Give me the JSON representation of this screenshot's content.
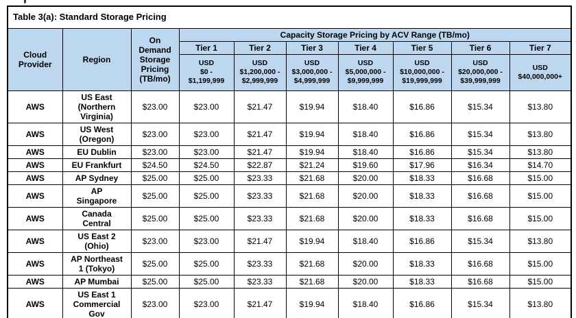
{
  "title": "Table 3(a): Standard Storage Pricing",
  "header": {
    "provider": "Cloud\nProvider",
    "region": "Region",
    "on_demand": "On\nDemand\nStorage\nPricing\n(TB/mo)",
    "capacity_group": "Capacity Storage Pricing by ACV Range (TB/mo)",
    "tiers": [
      {
        "name": "Tier 1",
        "range": "USD\n$0 -\n$1,199,999"
      },
      {
        "name": "Tier 2",
        "range": "USD\n$1,200,000 -\n$2,999,999"
      },
      {
        "name": "Tier 3",
        "range": "USD\n$3,000,000 -\n$4,999,999"
      },
      {
        "name": "Tier 4",
        "range": "USD\n$5,000,000 -\n$9,999,999"
      },
      {
        "name": "Tier 5",
        "range": "USD\n$10,000,000 -\n$19,999,999"
      },
      {
        "name": "Tier 6",
        "range": "USD\n$20,000,000 -\n$39,999,999"
      },
      {
        "name": "Tier 7",
        "range": "USD\n$40,000,000+"
      }
    ]
  },
  "rows": [
    {
      "provider": "AWS",
      "region": "US East\n(Northern\nVirginia)",
      "on_demand": "$23.00",
      "tiers": [
        "$23.00",
        "$21.47",
        "$19.94",
        "$18.40",
        "$16.86",
        "$15.34",
        "$13.80"
      ]
    },
    {
      "provider": "AWS",
      "region": "US West\n(Oregon)",
      "on_demand": "$23.00",
      "tiers": [
        "$23.00",
        "$21.47",
        "$19.94",
        "$18.40",
        "$16.86",
        "$15.34",
        "$13.80"
      ]
    },
    {
      "provider": "AWS",
      "region": "EU Dublin",
      "on_demand": "$23.00",
      "tiers": [
        "$23.00",
        "$21.47",
        "$19.94",
        "$18.40",
        "$16.86",
        "$15.34",
        "$13.80"
      ]
    },
    {
      "provider": "AWS",
      "region": "EU Frankfurt",
      "on_demand": "$24.50",
      "tiers": [
        "$24.50",
        "$22.87",
        "$21.24",
        "$19.60",
        "$17.96",
        "$16.34",
        "$14.70"
      ]
    },
    {
      "provider": "AWS",
      "region": "AP Sydney",
      "on_demand": "$25.00",
      "tiers": [
        "$25.00",
        "$23.33",
        "$21.68",
        "$20.00",
        "$18.33",
        "$16.68",
        "$15.00"
      ]
    },
    {
      "provider": "AWS",
      "region": "AP\nSingapore",
      "on_demand": "$25.00",
      "tiers": [
        "$25.00",
        "$23.33",
        "$21.68",
        "$20.00",
        "$18.33",
        "$16.68",
        "$15.00"
      ]
    },
    {
      "provider": "AWS",
      "region": "Canada\nCentral",
      "on_demand": "$25.00",
      "tiers": [
        "$25.00",
        "$23.33",
        "$21.68",
        "$20.00",
        "$18.33",
        "$16.68",
        "$15.00"
      ]
    },
    {
      "provider": "AWS",
      "region": "US East 2\n(Ohio)",
      "on_demand": "$23.00",
      "tiers": [
        "$23.00",
        "$21.47",
        "$19.94",
        "$18.40",
        "$16.86",
        "$15.34",
        "$13.80"
      ]
    },
    {
      "provider": "AWS",
      "region": "AP Northeast\n1 (Tokyo)",
      "on_demand": "$25.00",
      "tiers": [
        "$25.00",
        "$23.33",
        "$21.68",
        "$20.00",
        "$18.33",
        "$16.68",
        "$15.00"
      ]
    },
    {
      "provider": "AWS",
      "region": "AP Mumbai",
      "on_demand": "$25.00",
      "tiers": [
        "$25.00",
        "$23.33",
        "$21.68",
        "$20.00",
        "$18.33",
        "$16.68",
        "$15.00"
      ]
    },
    {
      "provider": "AWS",
      "region": "US East 1\nCommercial\nGov",
      "on_demand": "$23.00",
      "tiers": [
        "$23.00",
        "$21.47",
        "$19.94",
        "$18.40",
        "$16.86",
        "$15.34",
        "$13.80"
      ]
    }
  ]
}
